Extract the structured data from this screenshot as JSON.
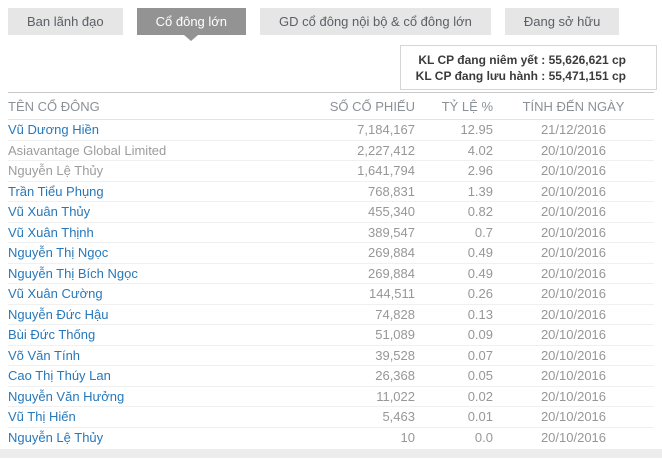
{
  "tabs": [
    {
      "id": "ban-lanh-dao",
      "label": "Ban lãnh đạo",
      "active": false
    },
    {
      "id": "co-dong-lon",
      "label": "Cổ đông lớn",
      "active": true
    },
    {
      "id": "gd-co-dong-noi-bo",
      "label": "GD cổ đông nội bộ & cổ đông lớn",
      "active": false
    },
    {
      "id": "dang-so-huu",
      "label": "Đang sở hữu",
      "active": false
    }
  ],
  "share_summary": {
    "rows": [
      {
        "name": "listed",
        "label": "KL CP đang niêm yết :",
        "value": "55,626,621 cp"
      },
      {
        "name": "outstanding",
        "label": "KL CP đang lưu hành :",
        "value": "55,471,151 cp"
      }
    ]
  },
  "table": {
    "headers": {
      "name": "TÊN CỔ ĐÔNG",
      "shares": "SỐ CỔ PHIẾU",
      "percent": "TỶ LỆ %",
      "date": "TÍNH ĐẾN NGÀY"
    },
    "rows": [
      {
        "name": "Vũ Dương Hiền",
        "link": true,
        "shares": "7,184,167",
        "percent": "12.95",
        "date": "21/12/2016"
      },
      {
        "name": "Asiavantage Global Limited",
        "link": false,
        "shares": "2,227,412",
        "percent": "4.02",
        "date": "20/10/2016"
      },
      {
        "name": "Nguyễn Lệ Thủy",
        "link": false,
        "shares": "1,641,794",
        "percent": "2.96",
        "date": "20/10/2016"
      },
      {
        "name": "Trần Tiểu Phụng",
        "link": true,
        "shares": "768,831",
        "percent": "1.39",
        "date": "20/10/2016"
      },
      {
        "name": "Vũ Xuân Thủy",
        "link": true,
        "shares": "455,340",
        "percent": "0.82",
        "date": "20/10/2016"
      },
      {
        "name": "Vũ Xuân Thịnh",
        "link": true,
        "shares": "389,547",
        "percent": "0.7",
        "date": "20/10/2016"
      },
      {
        "name": "Nguyễn Thị Ngọc",
        "link": true,
        "shares": "269,884",
        "percent": "0.49",
        "date": "20/10/2016"
      },
      {
        "name": "Nguyễn Thị Bích Ngọc",
        "link": true,
        "shares": "269,884",
        "percent": "0.49",
        "date": "20/10/2016"
      },
      {
        "name": "Vũ Xuân Cường",
        "link": true,
        "shares": "144,511",
        "percent": "0.26",
        "date": "20/10/2016"
      },
      {
        "name": "Nguyễn Đức Hậu",
        "link": true,
        "shares": "74,828",
        "percent": "0.13",
        "date": "20/10/2016"
      },
      {
        "name": "Bùi Đức Thống",
        "link": true,
        "shares": "51,089",
        "percent": "0.09",
        "date": "20/10/2016"
      },
      {
        "name": "Võ Văn Tính",
        "link": true,
        "shares": "39,528",
        "percent": "0.07",
        "date": "20/10/2016"
      },
      {
        "name": "Cao Thị Thúy Lan",
        "link": true,
        "shares": "26,368",
        "percent": "0.05",
        "date": "20/10/2016"
      },
      {
        "name": "Nguyễn Văn Hưởng",
        "link": true,
        "shares": "11,022",
        "percent": "0.02",
        "date": "20/10/2016"
      },
      {
        "name": "Vũ Thị Hiến",
        "link": true,
        "shares": "5,463",
        "percent": "0.01",
        "date": "20/10/2016"
      },
      {
        "name": "Nguyễn Lệ Thủy",
        "link": true,
        "shares": "10",
        "percent": "0.0",
        "date": "20/10/2016"
      }
    ]
  },
  "colors": {
    "link_blue": "#2678bb",
    "active_tab_gray": "#939393",
    "inactive_tab_gray": "#e6e6e6",
    "footer_bar_gray": "#ececec"
  }
}
